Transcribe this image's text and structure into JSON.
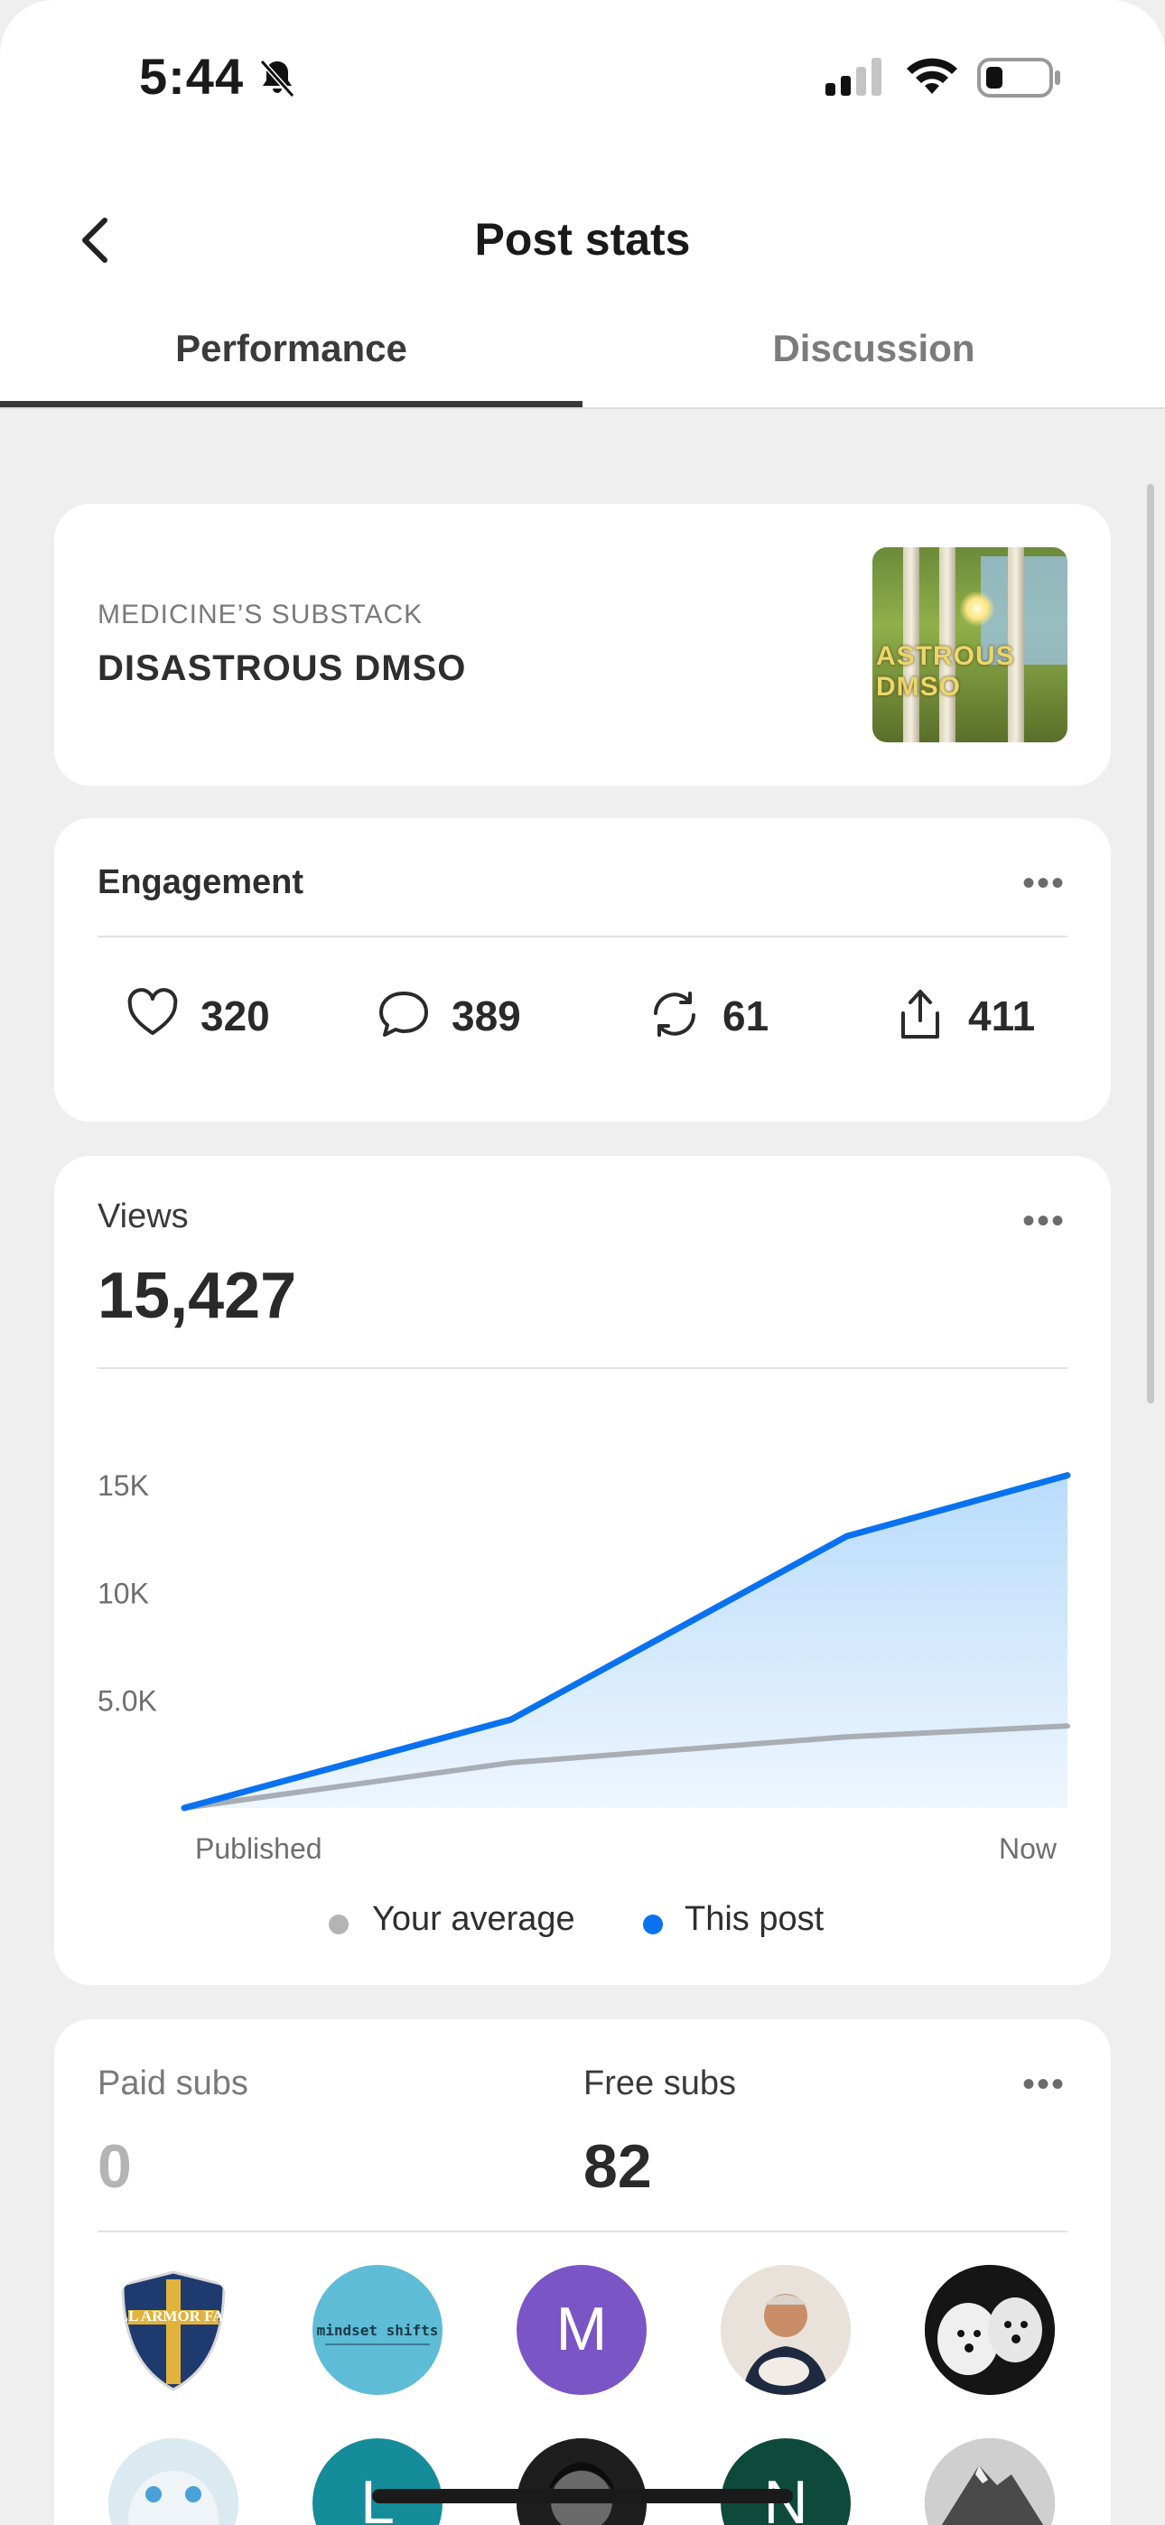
{
  "status_bar": {
    "time": "5:44"
  },
  "nav": {
    "title": "Post stats"
  },
  "tabs": [
    {
      "label": "Performance",
      "active": true
    },
    {
      "label": "Discussion",
      "active": false
    }
  ],
  "post": {
    "publication": "MEDICINE’S SUBSTACK",
    "title": "DISASTROUS DMSO",
    "thumbnail_text": [
      "ASTROUS",
      "DMSO"
    ]
  },
  "engagement": {
    "title": "Engagement",
    "likes": "320",
    "comments": "389",
    "restacks": "61",
    "shares": "411"
  },
  "views": {
    "label": "Views",
    "total": "15,427"
  },
  "chart_data": {
    "type": "area",
    "x": [
      "Published",
      "",
      "",
      "Now"
    ],
    "x_tick_labels": [
      "Published",
      "Now"
    ],
    "y_tick_labels": [
      "5.0K",
      "10K",
      "15K"
    ],
    "ylim": [
      0,
      16000
    ],
    "series": [
      {
        "name": "Your average",
        "color": "#a9aeb4",
        "values": [
          0,
          2100,
          3300,
          3800
        ]
      },
      {
        "name": "This post",
        "color": "#0a72f0",
        "values": [
          0,
          4100,
          12600,
          15427
        ]
      }
    ],
    "legend_position": "bottom",
    "grid": false
  },
  "subs": {
    "paid_label": "Paid subs",
    "paid_value": "0",
    "free_label": "Free subs",
    "free_value": "82",
    "avatars": [
      {
        "name": "full-armor-farm",
        "text": "FULL ARMOR FARM",
        "color": "#1f3a6e"
      },
      {
        "name": "mindset-shifts",
        "text": "mindset shifts",
        "color": "#5ebcd6"
      },
      {
        "name": "m",
        "text": "M",
        "color": "#7a55c6"
      },
      {
        "name": "person-photo",
        "text": "",
        "color": "#c9b8a6"
      },
      {
        "name": "dogs-photo",
        "text": "",
        "color": "#1a1a1a"
      },
      {
        "name": "animal-photo",
        "text": "",
        "color": "#d8e6ee"
      },
      {
        "name": "l",
        "text": "L",
        "color": "#148c99"
      },
      {
        "name": "bw-photo",
        "text": "",
        "color": "#2a2a2a"
      },
      {
        "name": "n",
        "text": "N",
        "color": "#0e4a3c"
      },
      {
        "name": "mountain-photo",
        "text": "",
        "color": "#7d7d7d"
      }
    ]
  }
}
